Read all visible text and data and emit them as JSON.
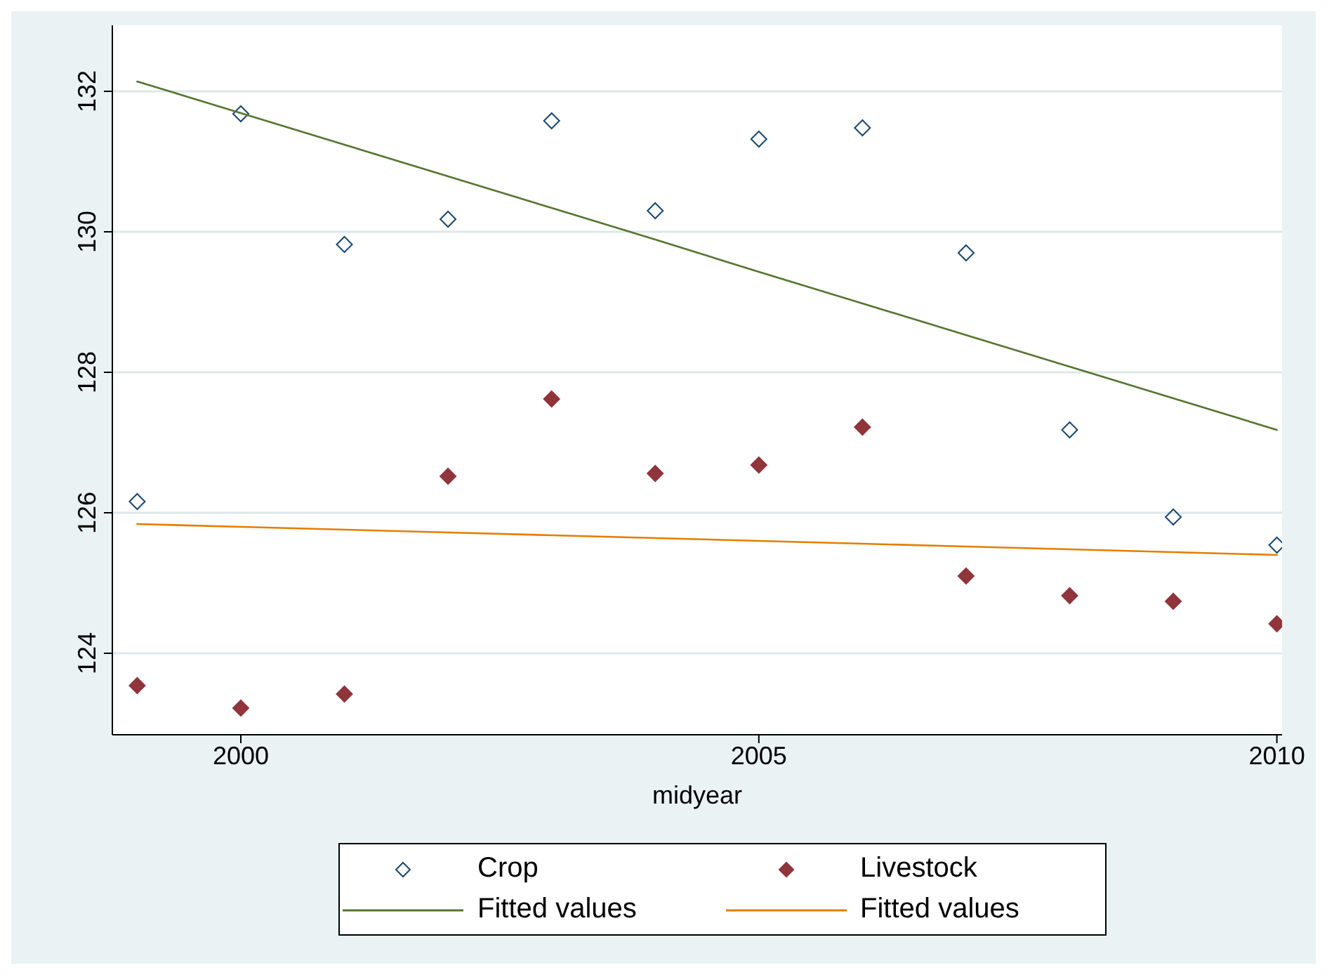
{
  "chart_data": {
    "type": "scatter",
    "xlabel": "midyear",
    "x": [
      1999,
      2000,
      2001,
      2002,
      2003,
      2004,
      2005,
      2006,
      2007,
      2008,
      2009,
      2010
    ],
    "series": [
      {
        "name": "Crop",
        "color": "#1a476f",
        "marker": "diamond",
        "values": [
          126.16,
          131.68,
          129.82,
          130.18,
          131.58,
          130.3,
          131.32,
          131.48,
          129.7,
          127.18,
          125.94,
          125.54
        ]
      },
      {
        "name": "Livestock",
        "color": "#90353b",
        "marker": "diamond",
        "values": [
          123.54,
          123.22,
          123.42,
          126.52,
          127.62,
          126.56,
          126.68,
          127.22,
          125.1,
          124.82,
          124.74,
          124.42
        ]
      },
      {
        "name": "Fitted values",
        "type": "line",
        "color": "#55752f",
        "values": [
          132.14,
          131.69,
          131.24,
          130.79,
          130.34,
          129.89,
          129.43,
          128.98,
          128.53,
          128.08,
          127.63,
          127.18
        ]
      },
      {
        "name": "Fitted values",
        "type": "line",
        "color": "#e37e00",
        "values": [
          125.84,
          125.8,
          125.76,
          125.72,
          125.68,
          125.64,
          125.6,
          125.56,
          125.52,
          125.48,
          125.44,
          125.4
        ]
      }
    ],
    "xlim": [
      1998.76,
      2010.05
    ],
    "xticks": [
      2000,
      2005,
      2010
    ],
    "ylim": [
      122.84,
      132.94
    ],
    "yticks": [
      124,
      126,
      128,
      130,
      132
    ],
    "grid": "y",
    "legend": "bottom"
  }
}
